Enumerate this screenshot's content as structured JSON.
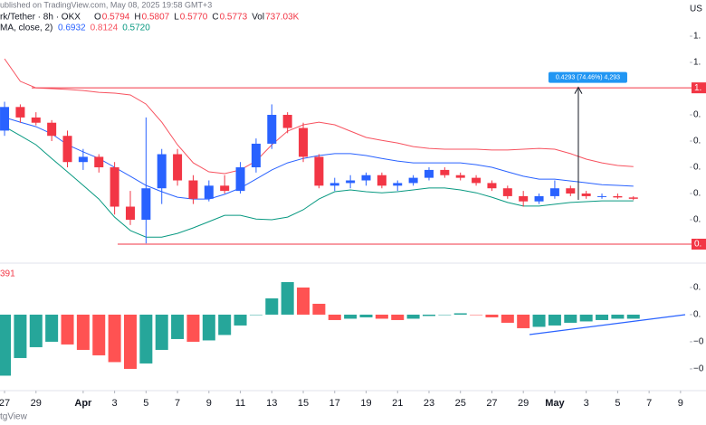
{
  "chart_data": [
    {
      "type": "candlestick",
      "published": "ublished on TradingView.com, May 08, 2025 19:58 GMT+3",
      "title": "rk/Tether · 8h · OKX",
      "ohlc": [
        {
          "label": "O",
          "value": "0.5794"
        },
        {
          "label": "H",
          "value": "0.5807"
        },
        {
          "label": "L",
          "value": "0.5770"
        },
        {
          "label": "C",
          "value": "0.5773"
        },
        {
          "label": "Vol",
          "value": "737.03K"
        }
      ],
      "indicator": "MA, close, 2)",
      "indicator_values": [
        "0.6932",
        "0.8124",
        "0.5720"
      ],
      "currency": "US",
      "xlim": [
        -0.29,
        44.62
      ],
      "ylim": [
        0.338,
        1.338
      ],
      "yticks": [
        {
          "value": 1.2,
          "label": "1."
        },
        {
          "value": 1.1,
          "label": "1."
        },
        {
          "value": 0.9,
          "label": "0."
        },
        {
          "value": 0.8,
          "label": "0."
        },
        {
          "value": 0.7,
          "label": "0."
        },
        {
          "value": 0.6,
          "label": "0."
        },
        {
          "value": 0.5,
          "label": "0."
        }
      ],
      "up_color": "#2962ff",
      "down_color": "#f23645",
      "x": [
        0,
        1,
        2,
        3,
        4,
        5,
        6,
        7,
        8,
        9,
        10,
        11,
        12,
        13,
        14,
        15,
        16,
        17,
        18,
        19,
        20,
        21,
        22,
        23,
        24,
        25,
        26,
        27,
        28,
        29,
        30,
        31,
        32,
        33,
        34,
        35,
        36,
        37,
        38,
        39,
        40
      ],
      "open": [
        0.84,
        0.93,
        0.89,
        0.87,
        0.82,
        0.72,
        0.74,
        0.7,
        0.55,
        0.5,
        0.62,
        0.75,
        0.65,
        0.58,
        0.63,
        0.61,
        0.7,
        0.79,
        0.9,
        0.85,
        0.74,
        0.63,
        0.64,
        0.65,
        0.67,
        0.63,
        0.64,
        0.66,
        0.69,
        0.67,
        0.66,
        0.64,
        0.62,
        0.59,
        0.57,
        0.59,
        0.62,
        0.6,
        0.59,
        0.59,
        0.585
      ],
      "high": [
        0.95,
        0.94,
        0.91,
        0.88,
        0.84,
        0.77,
        0.75,
        0.72,
        0.61,
        0.89,
        0.77,
        0.77,
        0.67,
        0.65,
        0.67,
        0.72,
        0.81,
        0.94,
        0.91,
        0.87,
        0.75,
        0.66,
        0.67,
        0.68,
        0.68,
        0.65,
        0.67,
        0.7,
        0.7,
        0.68,
        0.67,
        0.65,
        0.63,
        0.61,
        0.6,
        0.65,
        0.63,
        0.61,
        0.6,
        0.6,
        0.59
      ],
      "low": [
        0.82,
        0.87,
        0.86,
        0.8,
        0.7,
        0.69,
        0.68,
        0.52,
        0.48,
        0.41,
        0.56,
        0.63,
        0.56,
        0.57,
        0.6,
        0.6,
        0.68,
        0.77,
        0.83,
        0.72,
        0.62,
        0.61,
        0.62,
        0.63,
        0.62,
        0.61,
        0.63,
        0.65,
        0.66,
        0.65,
        0.63,
        0.61,
        0.58,
        0.55,
        0.56,
        0.58,
        0.59,
        0.58,
        0.58,
        0.58,
        0.575
      ],
      "close": [
        0.93,
        0.89,
        0.87,
        0.82,
        0.72,
        0.74,
        0.7,
        0.55,
        0.5,
        0.62,
        0.75,
        0.65,
        0.58,
        0.63,
        0.61,
        0.7,
        0.79,
        0.9,
        0.85,
        0.74,
        0.63,
        0.64,
        0.65,
        0.67,
        0.63,
        0.64,
        0.66,
        0.69,
        0.67,
        0.66,
        0.64,
        0.62,
        0.59,
        0.57,
        0.59,
        0.62,
        0.6,
        0.59,
        0.59,
        0.585,
        0.58
      ],
      "series": [
        {
          "color": "#f7525f",
          "values": [
            1.114,
            1.028,
            1.003,
            1.0,
            0.997,
            0.993,
            0.986,
            0.983,
            0.976,
            0.941,
            0.872,
            0.786,
            0.717,
            0.683,
            0.676,
            0.69,
            0.724,
            0.786,
            0.838,
            0.862,
            0.872,
            0.862,
            0.838,
            0.814,
            0.803,
            0.793,
            0.779,
            0.772,
            0.769,
            0.769,
            0.769,
            0.766,
            0.766,
            0.769,
            0.772,
            0.769,
            0.752,
            0.731,
            0.717,
            0.707,
            0.703
          ]
        },
        {
          "color": "#2962ff",
          "values": [
            0.89,
            0.872,
            0.855,
            0.828,
            0.786,
            0.759,
            0.734,
            0.7,
            0.666,
            0.631,
            0.607,
            0.586,
            0.579,
            0.579,
            0.597,
            0.621,
            0.655,
            0.69,
            0.717,
            0.734,
            0.745,
            0.752,
            0.752,
            0.745,
            0.734,
            0.724,
            0.717,
            0.717,
            0.717,
            0.717,
            0.71,
            0.7,
            0.683,
            0.666,
            0.655,
            0.655,
            0.648,
            0.641,
            0.634,
            0.631,
            0.628
          ]
        },
        {
          "color": "#089981",
          "values": [
            0.855,
            0.821,
            0.786,
            0.734,
            0.683,
            0.631,
            0.579,
            0.51,
            0.459,
            0.434,
            0.434,
            0.448,
            0.469,
            0.493,
            0.517,
            0.517,
            0.503,
            0.5,
            0.51,
            0.538,
            0.579,
            0.607,
            0.614,
            0.607,
            0.603,
            0.607,
            0.614,
            0.621,
            0.621,
            0.614,
            0.603,
            0.586,
            0.566,
            0.552,
            0.552,
            0.559,
            0.566,
            0.569,
            0.572,
            0.572,
            0.572
          ]
        }
      ],
      "levels": [
        {
          "value": 1.003,
          "label": "1.",
          "color": "#f23645"
        },
        {
          "value": 0.407,
          "label": "0.",
          "color": "#f23645"
        }
      ],
      "measure": {
        "x": 36.5,
        "from": 0.576,
        "to": 1.005,
        "label": "0.4293 (74.46%) 4,293"
      }
    },
    {
      "type": "histogram",
      "legend": "391",
      "watermark": "tgView",
      "xlim": [
        -0.29,
        44.62
      ],
      "ylim": [
        -0.0547,
        0.0353
      ],
      "yticks": [
        {
          "value": 0.02,
          "label": "0."
        },
        {
          "value": 0,
          "label": "0."
        },
        {
          "value": -0.02,
          "label": "−0"
        },
        {
          "value": -0.04,
          "label": "−0"
        }
      ],
      "xticks": [
        {
          "value": 0,
          "label": "27"
        },
        {
          "value": 2,
          "label": "29"
        },
        {
          "value": 5,
          "label": "Apr"
        },
        {
          "value": 7,
          "label": "3"
        },
        {
          "value": 9,
          "label": "5"
        },
        {
          "value": 11,
          "label": "7"
        },
        {
          "value": 13,
          "label": "9"
        },
        {
          "value": 15,
          "label": "11"
        },
        {
          "value": 17,
          "label": "13"
        },
        {
          "value": 19,
          "label": "15"
        },
        {
          "value": 21,
          "label": "17"
        },
        {
          "value": 23,
          "label": "19"
        },
        {
          "value": 25,
          "label": "21"
        },
        {
          "value": 27,
          "label": "23"
        },
        {
          "value": 29,
          "label": "25"
        },
        {
          "value": 31,
          "label": "27"
        },
        {
          "value": 33,
          "label": "29"
        },
        {
          "value": 35,
          "label": "May"
        },
        {
          "value": 37,
          "label": "3"
        },
        {
          "value": 39,
          "label": "5"
        },
        {
          "value": 41,
          "label": "7"
        },
        {
          "value": 43,
          "label": "9"
        }
      ],
      "rising_color": "#26a69a",
      "falling_color": "#ff5252",
      "x": [
        0,
        1,
        2,
        3,
        4,
        5,
        6,
        7,
        8,
        9,
        10,
        11,
        12,
        13,
        14,
        15,
        16,
        17,
        18,
        19,
        20,
        21,
        22,
        23,
        24,
        25,
        26,
        27,
        28,
        29,
        30,
        31,
        32,
        33,
        34,
        35,
        36,
        37,
        38,
        39,
        40
      ],
      "values": [
        -0.045,
        -0.032,
        -0.024,
        -0.02,
        -0.022,
        -0.026,
        -0.03,
        -0.035,
        -0.04,
        -0.036,
        -0.026,
        -0.018,
        -0.02,
        -0.019,
        -0.015,
        -0.008,
        0.0,
        0.012,
        0.024,
        0.02,
        0.008,
        -0.004,
        -0.003,
        -0.002,
        -0.003,
        -0.004,
        -0.003,
        -0.001,
        0.0,
        0.001,
        0.0,
        -0.002,
        -0.006,
        -0.01,
        -0.009,
        -0.008,
        -0.006,
        -0.005,
        -0.004,
        -0.003,
        -0.003
      ]
    }
  ]
}
